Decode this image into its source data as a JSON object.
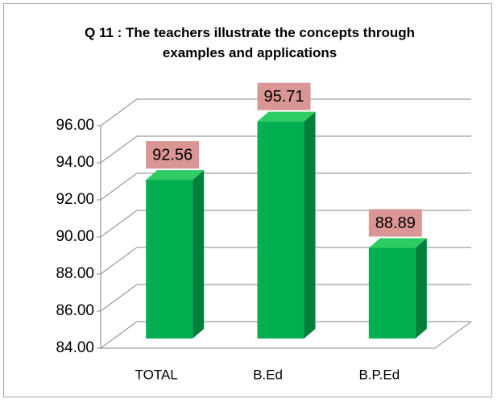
{
  "chart_data": {
    "type": "bar",
    "title": "Q 11 : The teachers illustrate the concepts through examples and applications",
    "categories": [
      "TOTAL",
      "B.Ed",
      "B.P.Ed"
    ],
    "values": [
      92.56,
      95.71,
      88.89
    ],
    "color": "#00b050",
    "label_box_color": "#d99694",
    "ylim": [
      84,
      96
    ],
    "yticks": [
      {
        "value": 84,
        "label": "84.00"
      },
      {
        "value": 86,
        "label": "86.00"
      },
      {
        "value": 88,
        "label": "88.00"
      },
      {
        "value": 90,
        "label": "90.00"
      },
      {
        "value": 92,
        "label": "92.00"
      },
      {
        "value": 94,
        "label": "94.00"
      },
      {
        "value": 96,
        "label": "96.00"
      }
    ],
    "grid": true
  }
}
